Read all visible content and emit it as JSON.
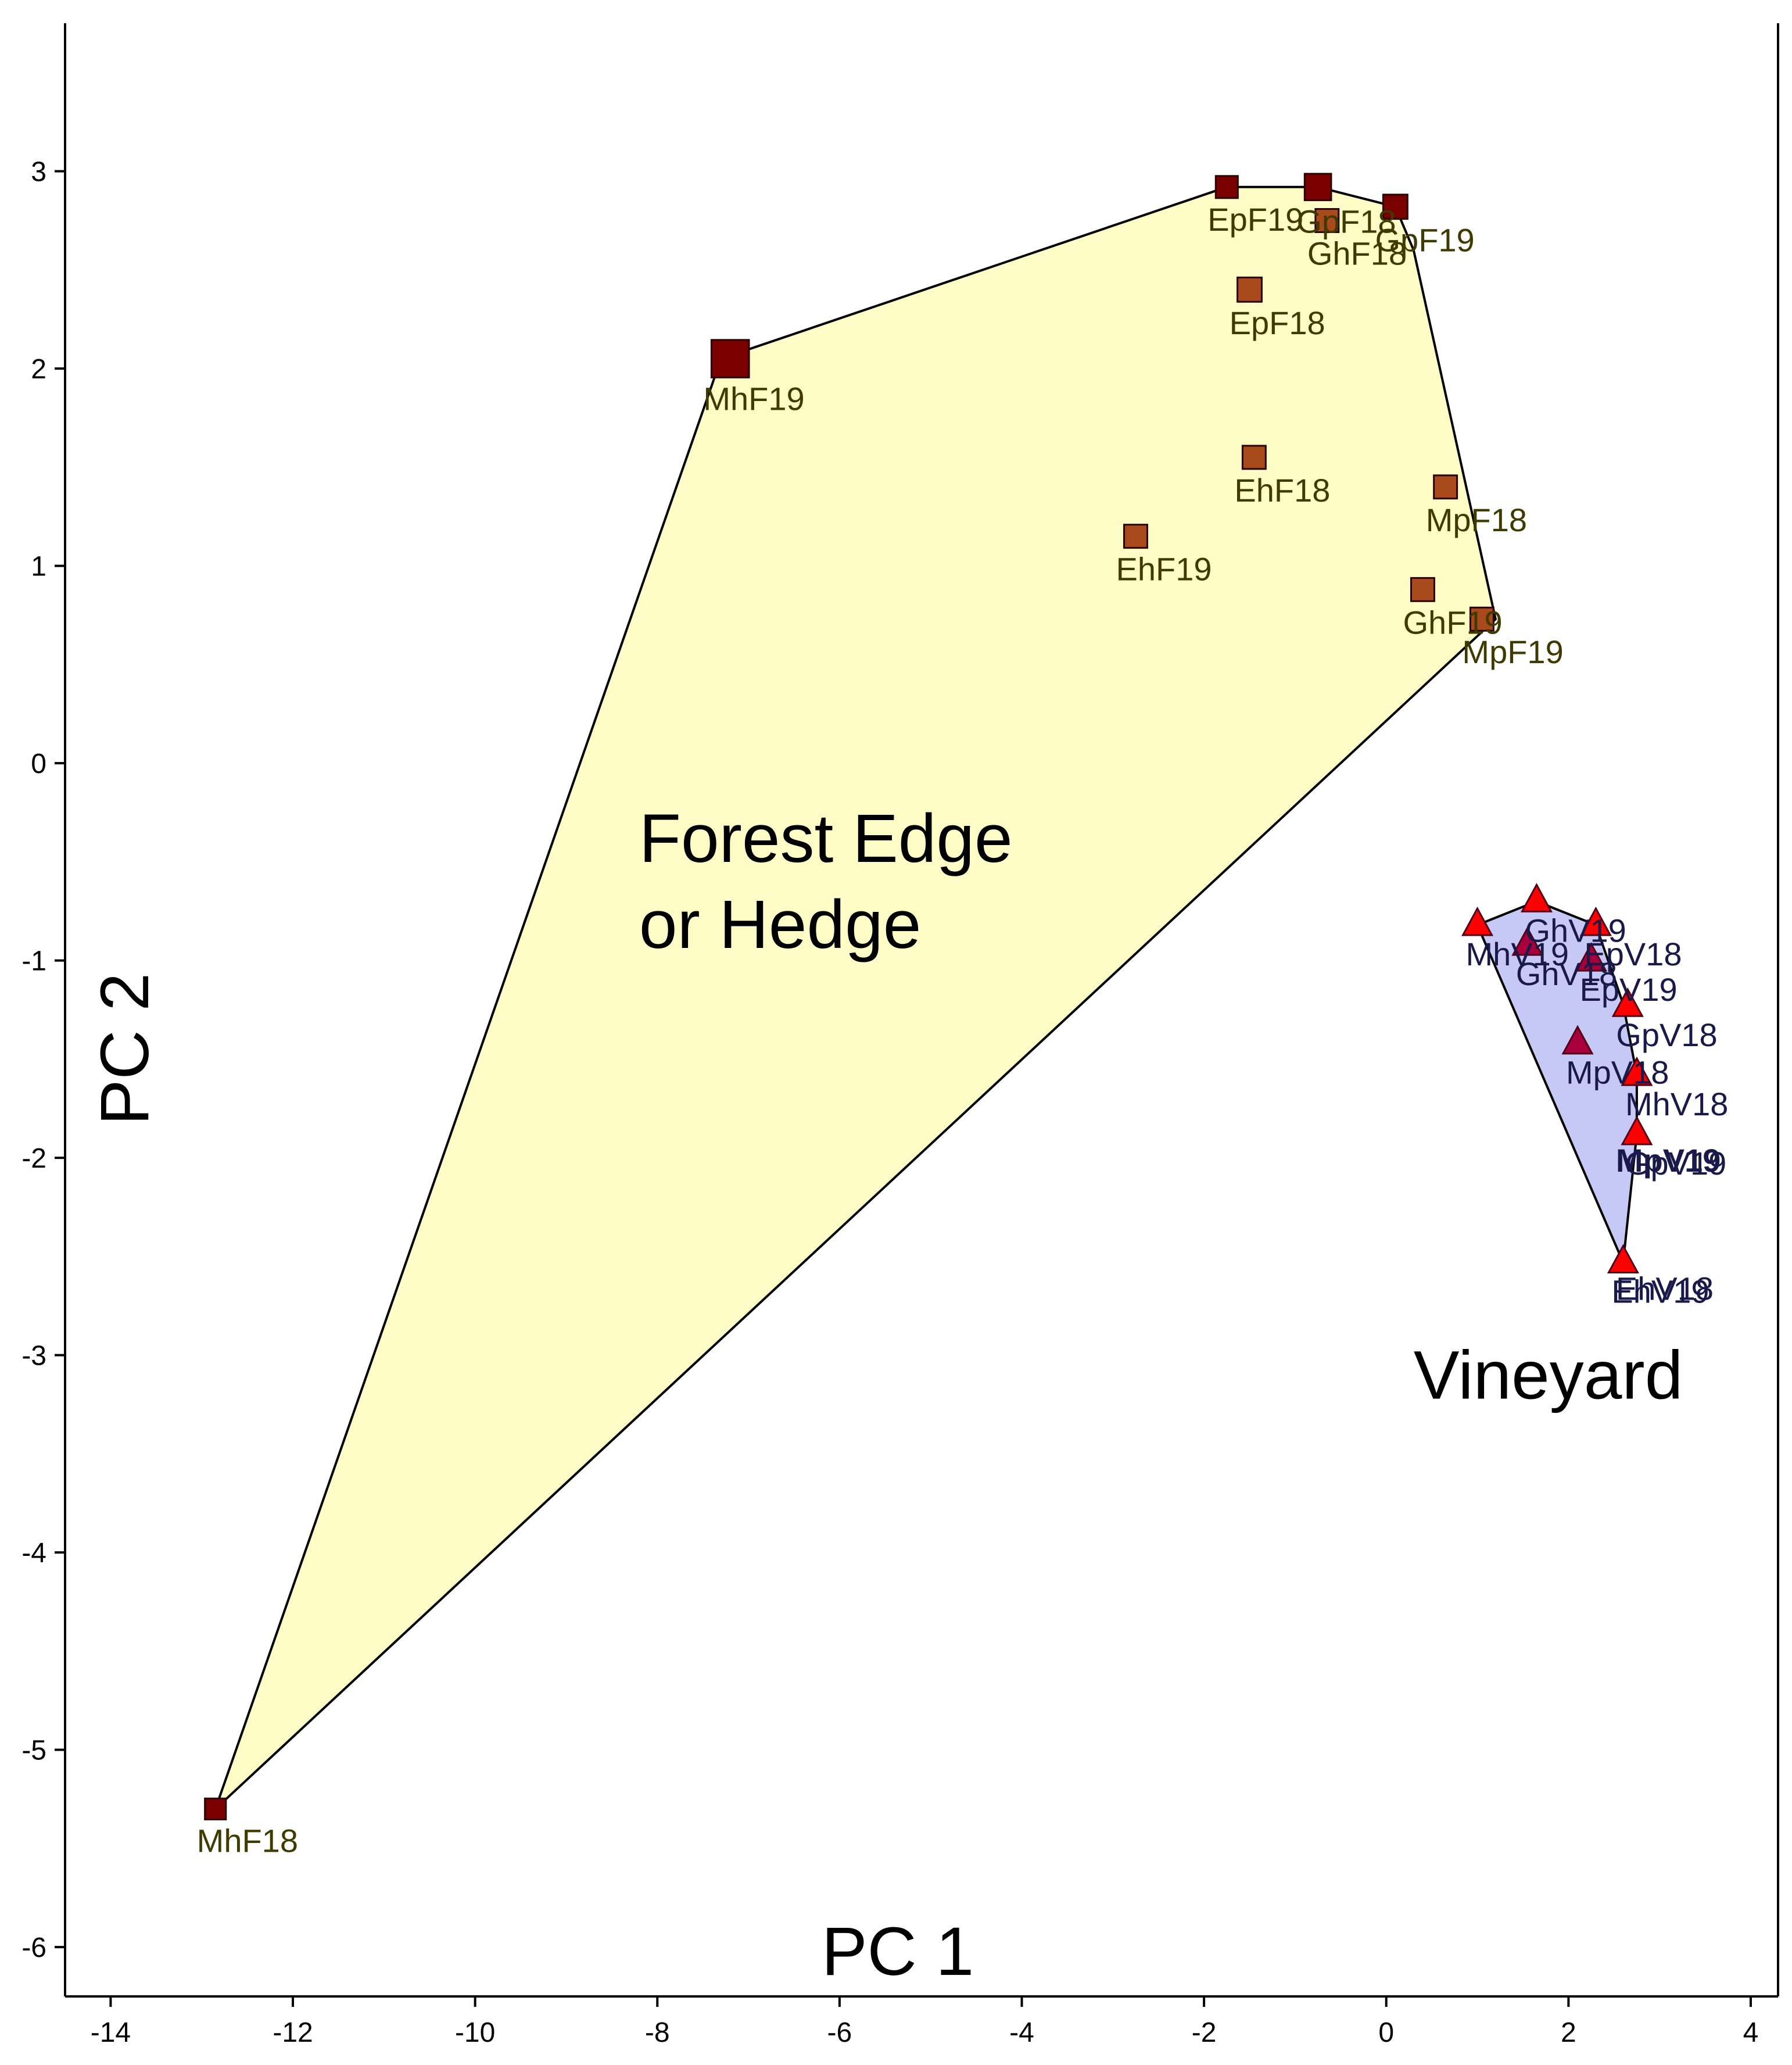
{
  "chart_data": {
    "type": "scatter",
    "title": "",
    "xlabel": "PC 1",
    "ylabel": "PC 2",
    "xlim": [
      -14.5,
      4.3
    ],
    "ylim": [
      -6.25,
      3.75
    ],
    "xticks": [
      -14,
      -12,
      -10,
      -8,
      -6,
      -4,
      -2,
      0,
      2,
      4
    ],
    "yticks": [
      -6,
      -5,
      -4,
      -3,
      -2,
      -1,
      0,
      1,
      2,
      3
    ],
    "grid": false,
    "region_labels": [
      {
        "lines": [
          "Forest Edge",
          "or Hedge"
        ],
        "x": -8.2,
        "y": -0.5
      },
      {
        "lines": [
          "Vineyard"
        ],
        "x": 0.3,
        "y": -3.22
      }
    ],
    "groups": [
      {
        "name": "Forest Edge or Hedge",
        "marker": "square",
        "hull_fill": "#fdfbc6",
        "marker_fill": "#a84a1c",
        "marker_dark": "#7a0000",
        "label_color": "#3f3a00",
        "hull": [
          [
            -12.85,
            -5.3
          ],
          [
            -7.3,
            2.05
          ],
          [
            -1.75,
            2.92
          ],
          [
            -0.75,
            2.92
          ],
          [
            0.1,
            2.82
          ],
          [
            0.3,
            2.6
          ],
          [
            1.2,
            0.73
          ]
        ],
        "points": [
          {
            "label": "EpF19",
            "x": -1.75,
            "y": 2.92,
            "size": 1,
            "dark": true
          },
          {
            "label": "GpF18",
            "x": -0.75,
            "y": 2.92,
            "size": 1.2,
            "dark": true
          },
          {
            "label": "GhF18",
            "x": -0.65,
            "y": 2.75,
            "size": 1.05,
            "dark": false
          },
          {
            "label": "GpF19",
            "x": 0.1,
            "y": 2.82,
            "size": 1.1,
            "dark": true
          },
          {
            "label": "EpF18",
            "x": -1.5,
            "y": 2.4,
            "size": 1.1,
            "dark": false
          },
          {
            "label": "MhF19",
            "x": -7.2,
            "y": 2.05,
            "size": 1.7,
            "dark": true
          },
          {
            "label": "EhF18",
            "x": -1.45,
            "y": 1.55,
            "size": 1.05,
            "dark": false
          },
          {
            "label": "MpF18",
            "x": 0.65,
            "y": 1.4,
            "size": 1.05,
            "dark": false
          },
          {
            "label": "EhF19",
            "x": -2.75,
            "y": 1.15,
            "size": 1.05,
            "dark": false
          },
          {
            "label": "GhF19",
            "x": 0.4,
            "y": 0.88,
            "size": 1.05,
            "dark": false
          },
          {
            "label": "MpF19",
            "x": 1.05,
            "y": 0.73,
            "size": 1.05,
            "dark": false
          },
          {
            "label": "MhF18",
            "x": -12.85,
            "y": -5.3,
            "size": 0.95,
            "dark": true
          }
        ]
      },
      {
        "name": "Vineyard",
        "marker": "triangle",
        "hull_fill": "#c6c8f5",
        "marker_fill": "#ff0000",
        "marker_dark": "#a8003c",
        "label_color": "#1a1a4a",
        "hull": [
          [
            1.0,
            -0.82
          ],
          [
            1.65,
            -0.7
          ],
          [
            2.3,
            -0.82
          ],
          [
            2.6,
            -1.22
          ],
          [
            2.75,
            -1.58
          ],
          [
            2.75,
            -1.88
          ],
          [
            2.6,
            -2.53
          ],
          [
            1.0,
            -0.82
          ]
        ],
        "points": [
          {
            "label": "MhV19",
            "x": 1.0,
            "y": -0.82,
            "dark": false
          },
          {
            "label": "GhV19",
            "x": 1.65,
            "y": -0.7,
            "dark": false
          },
          {
            "label": "GhV18",
            "x": 1.55,
            "y": -0.92,
            "dark": true
          },
          {
            "label": "EpV18",
            "x": 2.3,
            "y": -0.82,
            "dark": false
          },
          {
            "label": "EpV19",
            "x": 2.25,
            "y": -1.0,
            "dark": true
          },
          {
            "label": "GpV18",
            "x": 2.65,
            "y": -1.23,
            "dark": false
          },
          {
            "label": "MpV18",
            "x": 2.1,
            "y": -1.42,
            "dark": true
          },
          {
            "label": "MhV18",
            "x": 2.75,
            "y": -1.58,
            "dark": false
          },
          {
            "label": "GpV19",
            "x": 2.75,
            "y": -1.88,
            "dark": false
          },
          {
            "label": "EhV19",
            "x": 2.6,
            "y": -2.53,
            "dark": false
          }
        ],
        "extra_labels": [
          {
            "label": "MpV19",
            "x": 2.52,
            "y": -2.07,
            "bold": true
          },
          {
            "label": "EhV18",
            "x": 2.52,
            "y": -2.72,
            "bold": false
          }
        ]
      }
    ]
  }
}
